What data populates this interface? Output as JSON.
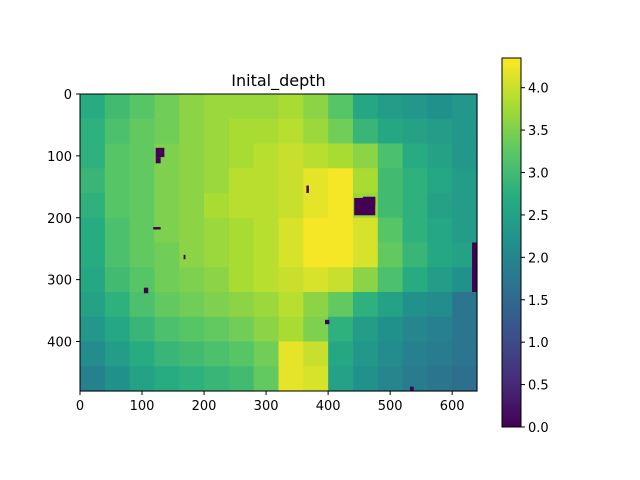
{
  "chart_data": {
    "type": "heatmap",
    "title": "Inital_depth",
    "xlabel": "",
    "ylabel": "",
    "colormap": "viridis",
    "image_size": {
      "width": 640,
      "height": 480
    },
    "xlim": [
      0,
      640
    ],
    "ylim": [
      480,
      0
    ],
    "xticks": [
      0,
      100,
      200,
      300,
      400,
      500,
      600
    ],
    "yticks": [
      0,
      100,
      200,
      300,
      400
    ],
    "xtick_labels": [
      "0",
      "100",
      "200",
      "300",
      "400",
      "500",
      "600"
    ],
    "ytick_labels": [
      "0",
      "100",
      "200",
      "300",
      "400"
    ],
    "colorbar": {
      "range": [
        0.0,
        4.35
      ],
      "ticks": [
        0.0,
        0.5,
        1.0,
        1.5,
        2.0,
        2.5,
        3.0,
        3.5,
        4.0
      ],
      "tick_labels": [
        "0.0",
        "0.5",
        "1.0",
        "1.5",
        "2.0",
        "2.5",
        "3.0",
        "3.5",
        "4.0"
      ]
    },
    "depth_grid": {
      "cols": 16,
      "rows": 12,
      "cell_size": 40,
      "values": [
        [
          2.7,
          3.0,
          3.2,
          3.4,
          3.6,
          3.7,
          3.7,
          3.7,
          3.8,
          3.6,
          3.2,
          2.6,
          2.4,
          2.3,
          2.2,
          2.3
        ],
        [
          2.8,
          3.1,
          3.3,
          3.4,
          3.6,
          3.7,
          3.8,
          3.8,
          3.9,
          3.7,
          3.4,
          2.9,
          2.6,
          2.5,
          2.4,
          2.3
        ],
        [
          2.8,
          3.2,
          3.3,
          3.5,
          3.6,
          3.7,
          3.8,
          3.9,
          4.0,
          3.9,
          3.8,
          3.6,
          3.1,
          2.7,
          2.5,
          2.3
        ],
        [
          2.9,
          3.2,
          3.3,
          3.5,
          3.6,
          3.7,
          3.9,
          3.9,
          4.0,
          4.2,
          4.3,
          3.8,
          3.0,
          2.8,
          2.6,
          2.4
        ],
        [
          2.8,
          3.2,
          3.3,
          3.5,
          3.6,
          3.8,
          3.9,
          3.9,
          4.0,
          4.2,
          4.3,
          3.7,
          3.0,
          2.8,
          2.5,
          2.4
        ],
        [
          2.7,
          3.1,
          3.3,
          3.5,
          3.6,
          3.7,
          3.8,
          3.9,
          4.1,
          4.3,
          4.3,
          4.1,
          3.2,
          2.8,
          2.6,
          2.4
        ],
        [
          2.7,
          3.1,
          3.3,
          3.4,
          3.6,
          3.7,
          3.8,
          3.9,
          4.1,
          4.3,
          4.3,
          4.1,
          3.3,
          2.9,
          2.6,
          2.5
        ],
        [
          2.6,
          3.0,
          3.2,
          3.4,
          3.5,
          3.6,
          3.8,
          3.9,
          4.0,
          4.1,
          4.0,
          3.6,
          3.1,
          2.7,
          2.4,
          2.2
        ],
        [
          2.5,
          2.8,
          3.1,
          3.3,
          3.4,
          3.5,
          3.6,
          3.7,
          3.9,
          3.6,
          3.3,
          2.8,
          2.5,
          2.2,
          2.1,
          1.7
        ],
        [
          2.3,
          2.6,
          2.9,
          3.1,
          3.2,
          3.3,
          3.4,
          3.6,
          3.8,
          3.5,
          2.8,
          2.4,
          2.2,
          2.0,
          1.9,
          1.7
        ],
        [
          2.1,
          2.4,
          2.7,
          2.9,
          3.0,
          3.1,
          3.2,
          3.4,
          4.2,
          4.0,
          2.6,
          2.3,
          2.1,
          1.9,
          1.8,
          1.7
        ],
        [
          1.9,
          2.2,
          2.5,
          2.7,
          2.8,
          2.9,
          3.0,
          3.3,
          4.2,
          4.1,
          2.5,
          2.2,
          2.0,
          1.8,
          1.7,
          1.6
        ]
      ]
    },
    "zero_depth_patches": [
      {
        "x": [
          122,
          136
        ],
        "y": [
          87,
          102
        ]
      },
      {
        "x": [
          122,
          130
        ],
        "y": [
          102,
          112
        ]
      },
      {
        "x": [
          365,
          369
        ],
        "y": [
          148,
          160
        ]
      },
      {
        "x": [
          442,
          476
        ],
        "y": [
          168,
          196
        ]
      },
      {
        "x": [
          456,
          476
        ],
        "y": [
          166,
          180
        ]
      },
      {
        "x": [
          118,
          130
        ],
        "y": [
          215,
          219
        ]
      },
      {
        "x": [
          167,
          170
        ],
        "y": [
          260,
          267
        ]
      },
      {
        "x": [
          103,
          110
        ],
        "y": [
          313,
          322
        ]
      },
      {
        "x": [
          395,
          402
        ],
        "y": [
          365,
          372
        ]
      },
      {
        "x": [
          632,
          640
        ],
        "y": [
          240,
          320
        ]
      },
      {
        "x": [
          532,
          538
        ],
        "y": [
          473,
          480
        ]
      }
    ]
  }
}
